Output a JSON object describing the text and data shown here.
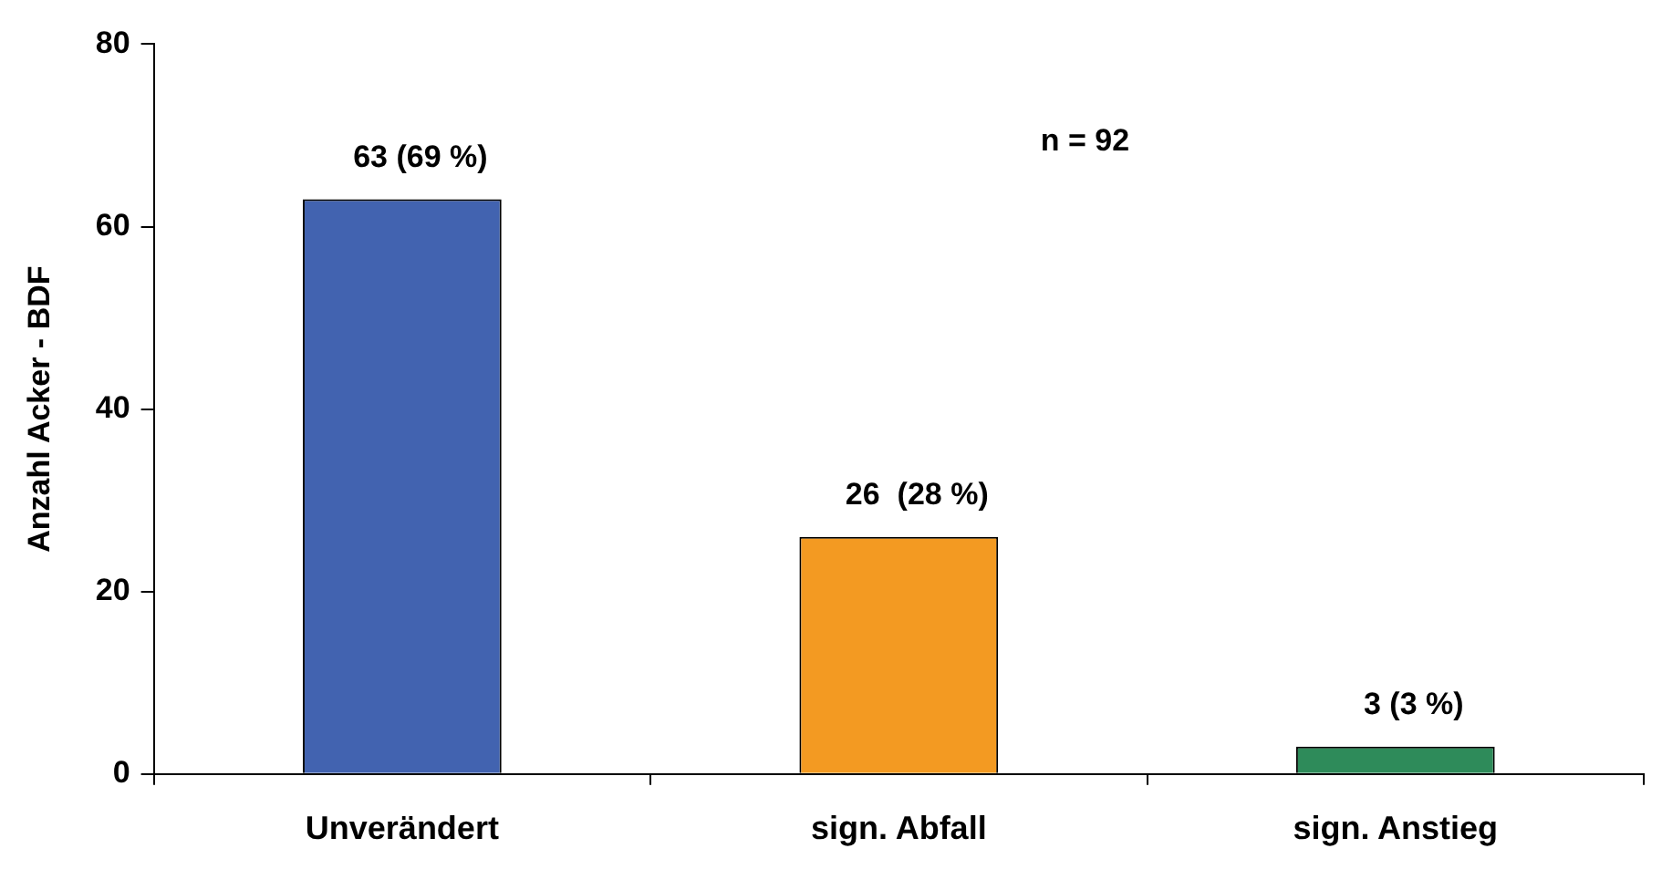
{
  "chart_data": {
    "type": "bar",
    "ylabel": "Anzahl Acker - BDF",
    "categories": [
      "Unverändert",
      "sign. Abfall",
      "sign. Anstieg"
    ],
    "values": [
      63,
      26,
      3
    ],
    "colors": [
      "#4263b0",
      "#f39a22",
      "#2e8b5a"
    ],
    "value_labels": [
      "63 (69 %)",
      "26  (28 %)",
      "3 (3 %)"
    ],
    "annotations": [
      "n = 92"
    ],
    "ylim": [
      0,
      80
    ],
    "yticks": [
      0,
      20,
      40,
      60,
      80
    ],
    "grid": false,
    "legend": false
  }
}
